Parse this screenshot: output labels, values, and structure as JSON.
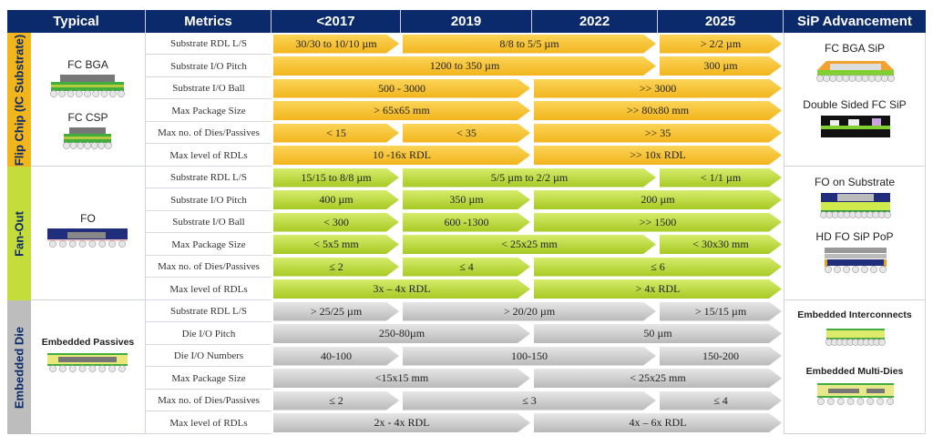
{
  "header": {
    "typical": "Typical",
    "metrics": "Metrics",
    "y2017": "<2017",
    "y2019": "2019",
    "y2022": "2022",
    "y2025": "2025",
    "sip": "SiP Advancement"
  },
  "colors": {
    "header_bg": "#0b2a6b",
    "flip_chip": "#f2b51c",
    "fan_out": "#a7c924",
    "embedded": "#b9b9b9"
  },
  "sections": [
    {
      "id": "fc",
      "label": "Flip Chip (IC Substrate)",
      "typical": [
        "FC BGA",
        "FC CSP"
      ],
      "sip": [
        "FC BGA SiP",
        "Double Sided FC SiP"
      ],
      "rows": [
        {
          "metric": "Substrate RDL L/S",
          "cells": [
            {
              "text": "30/30 to 10/10 µm",
              "from": "<2017",
              "to": "<2017"
            },
            {
              "text": "8/8 to 5/5 µm",
              "from": "2019",
              "to": "2022"
            },
            {
              "text": "> 2/2 µm",
              "from": "2025",
              "to": "2025"
            }
          ]
        },
        {
          "metric": "Substrate I/O Pitch",
          "cells": [
            {
              "text": "1200 to 350 µm",
              "from": "<2017",
              "to": "2022"
            },
            {
              "text": "300 µm",
              "from": "2025",
              "to": "2025"
            }
          ]
        },
        {
          "metric": "Substrate I/O Ball",
          "cells": [
            {
              "text": "500 - 3000",
              "from": "<2017",
              "to": "2019"
            },
            {
              "text": ">> 3000",
              "from": "2022",
              "to": "2025"
            }
          ]
        },
        {
          "metric": "Max Package Size",
          "cells": [
            {
              "text": "> 65x65 mm",
              "from": "<2017",
              "to": "2019"
            },
            {
              "text": ">> 80x80 mm",
              "from": "2022",
              "to": "2025"
            }
          ]
        },
        {
          "metric": "Max no. of Dies/Passives",
          "cells": [
            {
              "text": "< 15",
              "from": "<2017",
              "to": "<2017"
            },
            {
              "text": "< 35",
              "from": "2019",
              "to": "2019"
            },
            {
              "text": ">> 35",
              "from": "2022",
              "to": "2025"
            }
          ]
        },
        {
          "metric": "Max level of RDLs",
          "cells": [
            {
              "text": "10 -16x RDL",
              "from": "<2017",
              "to": "2019"
            },
            {
              "text": ">> 10x RDL",
              "from": "2022",
              "to": "2025"
            }
          ]
        }
      ]
    },
    {
      "id": "fo",
      "label": "Fan-Out",
      "typical": [
        "FO"
      ],
      "sip": [
        "FO on Substrate",
        "HD FO SiP PoP"
      ],
      "rows": [
        {
          "metric": "Substrate RDL L/S",
          "cells": [
            {
              "text": "15/15 to 8/8 µm",
              "from": "<2017",
              "to": "<2017"
            },
            {
              "text": "5/5 µm to 2/2 µm",
              "from": "2019",
              "to": "2022"
            },
            {
              "text": "< 1/1 µm",
              "from": "2025",
              "to": "2025"
            }
          ]
        },
        {
          "metric": "Substrate I/O Pitch",
          "cells": [
            {
              "text": "400 µm",
              "from": "<2017",
              "to": "<2017"
            },
            {
              "text": "350 µm",
              "from": "2019",
              "to": "2019"
            },
            {
              "text": "200 µm",
              "from": "2022",
              "to": "2025"
            }
          ]
        },
        {
          "metric": "Substrate I/O Ball",
          "cells": [
            {
              "text": "< 300",
              "from": "<2017",
              "to": "<2017"
            },
            {
              "text": "600 -1300",
              "from": "2019",
              "to": "2019"
            },
            {
              "text": ">> 1500",
              "from": "2022",
              "to": "2025"
            }
          ]
        },
        {
          "metric": "Max Package Size",
          "cells": [
            {
              "text": "< 5x5 mm",
              "from": "<2017",
              "to": "<2017"
            },
            {
              "text": "< 25x25 mm",
              "from": "2019",
              "to": "2022"
            },
            {
              "text": "< 30x30 mm",
              "from": "2025",
              "to": "2025"
            }
          ]
        },
        {
          "metric": "Max no. of Dies/Passives",
          "cells": [
            {
              "text": "≤ 2",
              "from": "<2017",
              "to": "<2017"
            },
            {
              "text": "≤ 4",
              "from": "2019",
              "to": "2019"
            },
            {
              "text": "≤ 6",
              "from": "2022",
              "to": "2025"
            }
          ]
        },
        {
          "metric": "Max level of RDLs",
          "cells": [
            {
              "text": "3x – 4x RDL",
              "from": "<2017",
              "to": "2019"
            },
            {
              "text": "> 4x RDL",
              "from": "2022",
              "to": "2025"
            }
          ]
        }
      ]
    },
    {
      "id": "ed",
      "label": "Embedded Die",
      "typical": [
        "Embedded Passives"
      ],
      "sip": [
        "Embedded Interconnects",
        "Embedded Multi-Dies"
      ],
      "rows": [
        {
          "metric": "Substrate RDL L/S",
          "cells": [
            {
              "text": "> 25/25 µm",
              "from": "<2017",
              "to": "<2017"
            },
            {
              "text": "> 20/20 µm",
              "from": "2019",
              "to": "2022"
            },
            {
              "text": "> 15/15 µm",
              "from": "2025",
              "to": "2025"
            }
          ]
        },
        {
          "metric": "Die I/O Pitch",
          "cells": [
            {
              "text": "250-80µm",
              "from": "<2017",
              "to": "2019"
            },
            {
              "text": "50 µm",
              "from": "2022",
              "to": "2025"
            }
          ]
        },
        {
          "metric": "Die I/O Numbers",
          "cells": [
            {
              "text": "40-100",
              "from": "<2017",
              "to": "<2017"
            },
            {
              "text": "100-150",
              "from": "2019",
              "to": "2022"
            },
            {
              "text": "150-200",
              "from": "2025",
              "to": "2025"
            }
          ]
        },
        {
          "metric": "Max Package Size",
          "cells": [
            {
              "text": "<15x15 mm",
              "from": "<2017",
              "to": "2019"
            },
            {
              "text": "< 25x25 mm",
              "from": "2022",
              "to": "2025"
            }
          ]
        },
        {
          "metric": "Max no. of Dies/Passives",
          "cells": [
            {
              "text": "≤ 2",
              "from": "<2017",
              "to": "<2017"
            },
            {
              "text": "≤ 3",
              "from": "2019",
              "to": "2022"
            },
            {
              "text": "≤ 4",
              "from": "2025",
              "to": "2025"
            }
          ]
        },
        {
          "metric": "Max level of RDLs",
          "cells": [
            {
              "text": "2x - 4x RDL",
              "from": "<2017",
              "to": "2019"
            },
            {
              "text": "4x – 6x RDL",
              "from": "2022",
              "to": "2025"
            }
          ]
        }
      ]
    }
  ]
}
